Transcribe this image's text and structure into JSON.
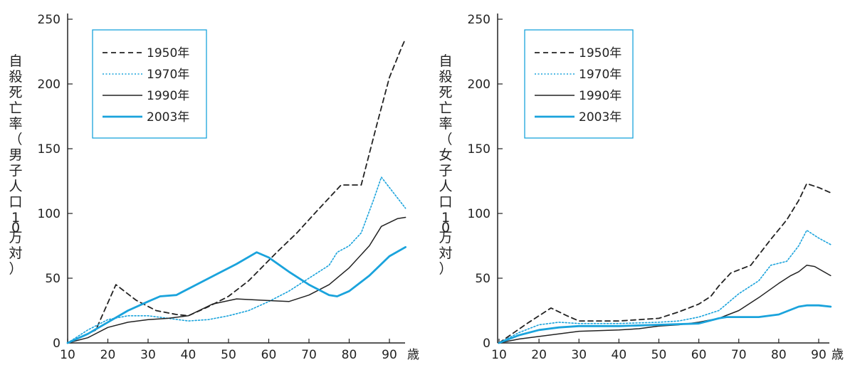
{
  "colors": {
    "axis": "#222222",
    "black": "#222222",
    "blue": "#1aa3dc",
    "legend_border": "#1aa3dc"
  },
  "chart_data": [
    {
      "type": "line",
      "title": "",
      "xlabel": "歳",
      "ylabel": "自殺死亡率（男子人口10万対）",
      "xlim": [
        10,
        95
      ],
      "ylim": [
        0,
        250
      ],
      "x_ticks": [
        10,
        20,
        30,
        40,
        50,
        60,
        70,
        80,
        90
      ],
      "y_ticks": [
        0,
        50,
        100,
        150,
        200,
        250
      ],
      "grid": false,
      "legend_placement": "top-left",
      "series": [
        {
          "name": "1950年",
          "style": "dashed",
          "color": "#222222",
          "points": [
            [
              10,
              0
            ],
            [
              17,
              10
            ],
            [
              22,
              45
            ],
            [
              27,
              33
            ],
            [
              32,
              25
            ],
            [
              37,
              22
            ],
            [
              40,
              21
            ],
            [
              45,
              28
            ],
            [
              50,
              36
            ],
            [
              55,
              48
            ],
            [
              62,
              70
            ],
            [
              67,
              85
            ],
            [
              72,
              102
            ],
            [
              78,
              122
            ],
            [
              83,
              122
            ],
            [
              87,
              170
            ],
            [
              90,
              205
            ],
            [
              93,
              228
            ],
            [
              94,
              235
            ]
          ]
        },
        {
          "name": "1970年",
          "style": "dotted",
          "color": "#1aa3dc",
          "points": [
            [
              10,
              0
            ],
            [
              15,
              10
            ],
            [
              20,
              18
            ],
            [
              25,
              21
            ],
            [
              30,
              21
            ],
            [
              35,
              19
            ],
            [
              40,
              17
            ],
            [
              45,
              18
            ],
            [
              50,
              21
            ],
            [
              55,
              25
            ],
            [
              60,
              32
            ],
            [
              65,
              40
            ],
            [
              70,
              50
            ],
            [
              75,
              60
            ],
            [
              77,
              70
            ],
            [
              80,
              75
            ],
            [
              83,
              85
            ],
            [
              86,
              110
            ],
            [
              88,
              128
            ],
            [
              90,
              120
            ],
            [
              94,
              104
            ]
          ]
        },
        {
          "name": "1990年",
          "style": "solid",
          "color": "#222222",
          "points": [
            [
              10,
              0
            ],
            [
              15,
              4
            ],
            [
              20,
              12
            ],
            [
              25,
              16
            ],
            [
              30,
              18
            ],
            [
              35,
              19
            ],
            [
              40,
              21
            ],
            [
              46,
              30
            ],
            [
              52,
              34
            ],
            [
              58,
              33
            ],
            [
              65,
              32
            ],
            [
              70,
              37
            ],
            [
              75,
              45
            ],
            [
              80,
              58
            ],
            [
              85,
              75
            ],
            [
              88,
              90
            ],
            [
              92,
              96
            ],
            [
              94,
              97
            ]
          ]
        },
        {
          "name": "2003年",
          "style": "solid-thick",
          "color": "#1aa3dc",
          "points": [
            [
              10,
              0
            ],
            [
              15,
              7
            ],
            [
              20,
              16
            ],
            [
              25,
              25
            ],
            [
              30,
              32
            ],
            [
              33,
              36
            ],
            [
              37,
              37
            ],
            [
              42,
              45
            ],
            [
              47,
              53
            ],
            [
              52,
              61
            ],
            [
              57,
              70
            ],
            [
              60,
              66
            ],
            [
              65,
              55
            ],
            [
              70,
              45
            ],
            [
              75,
              37
            ],
            [
              77,
              36
            ],
            [
              80,
              40
            ],
            [
              85,
              52
            ],
            [
              90,
              67
            ],
            [
              94,
              74
            ]
          ]
        }
      ]
    },
    {
      "type": "line",
      "title": "",
      "xlabel": "歳",
      "ylabel": "自殺死亡率（女子人口10万対）",
      "xlim": [
        10,
        95
      ],
      "ylim": [
        0,
        250
      ],
      "x_ticks": [
        10,
        20,
        30,
        40,
        50,
        60,
        70,
        80,
        90
      ],
      "y_ticks": [
        0,
        50,
        100,
        150,
        200,
        250
      ],
      "grid": false,
      "legend_placement": "top-left",
      "series": [
        {
          "name": "1950年",
          "style": "dashed",
          "color": "#222222",
          "points": [
            [
              10,
              0
            ],
            [
              17,
              15
            ],
            [
              23,
              27
            ],
            [
              27,
              21
            ],
            [
              30,
              17
            ],
            [
              40,
              17
            ],
            [
              50,
              19
            ],
            [
              55,
              24
            ],
            [
              60,
              30
            ],
            [
              63,
              36
            ],
            [
              65,
              44
            ],
            [
              68,
              54
            ],
            [
              73,
              60
            ],
            [
              78,
              80
            ],
            [
              82,
              95
            ],
            [
              85,
              110
            ],
            [
              87,
              123
            ],
            [
              90,
              120
            ],
            [
              93,
              116
            ]
          ]
        },
        {
          "name": "1970年",
          "style": "dotted",
          "color": "#1aa3dc",
          "points": [
            [
              10,
              0
            ],
            [
              15,
              8
            ],
            [
              20,
              14
            ],
            [
              25,
              16
            ],
            [
              30,
              15
            ],
            [
              40,
              15
            ],
            [
              50,
              16
            ],
            [
              55,
              17
            ],
            [
              60,
              20
            ],
            [
              65,
              25
            ],
            [
              70,
              38
            ],
            [
              75,
              48
            ],
            [
              78,
              60
            ],
            [
              82,
              63
            ],
            [
              85,
              75
            ],
            [
              87,
              87
            ],
            [
              90,
              81
            ],
            [
              93,
              76
            ]
          ]
        },
        {
          "name": "1990年",
          "style": "solid",
          "color": "#222222",
          "points": [
            [
              10,
              0
            ],
            [
              15,
              3
            ],
            [
              20,
              5
            ],
            [
              25,
              7
            ],
            [
              30,
              9
            ],
            [
              40,
              10
            ],
            [
              45,
              11
            ],
            [
              50,
              13
            ],
            [
              55,
              14
            ],
            [
              60,
              16
            ],
            [
              65,
              19
            ],
            [
              70,
              25
            ],
            [
              75,
              35
            ],
            [
              80,
              46
            ],
            [
              83,
              52
            ],
            [
              85,
              55
            ],
            [
              87,
              60
            ],
            [
              89,
              59
            ],
            [
              93,
              52
            ]
          ]
        },
        {
          "name": "2003年",
          "style": "solid-thick",
          "color": "#1aa3dc",
          "points": [
            [
              10,
              0
            ],
            [
              15,
              6
            ],
            [
              20,
              10
            ],
            [
              25,
              12
            ],
            [
              30,
              13
            ],
            [
              40,
              13
            ],
            [
              50,
              14
            ],
            [
              60,
              15
            ],
            [
              65,
              19
            ],
            [
              67,
              20
            ],
            [
              70,
              20
            ],
            [
              75,
              20
            ],
            [
              80,
              22
            ],
            [
              85,
              28
            ],
            [
              87,
              29
            ],
            [
              90,
              29
            ],
            [
              93,
              28
            ]
          ]
        }
      ]
    }
  ]
}
